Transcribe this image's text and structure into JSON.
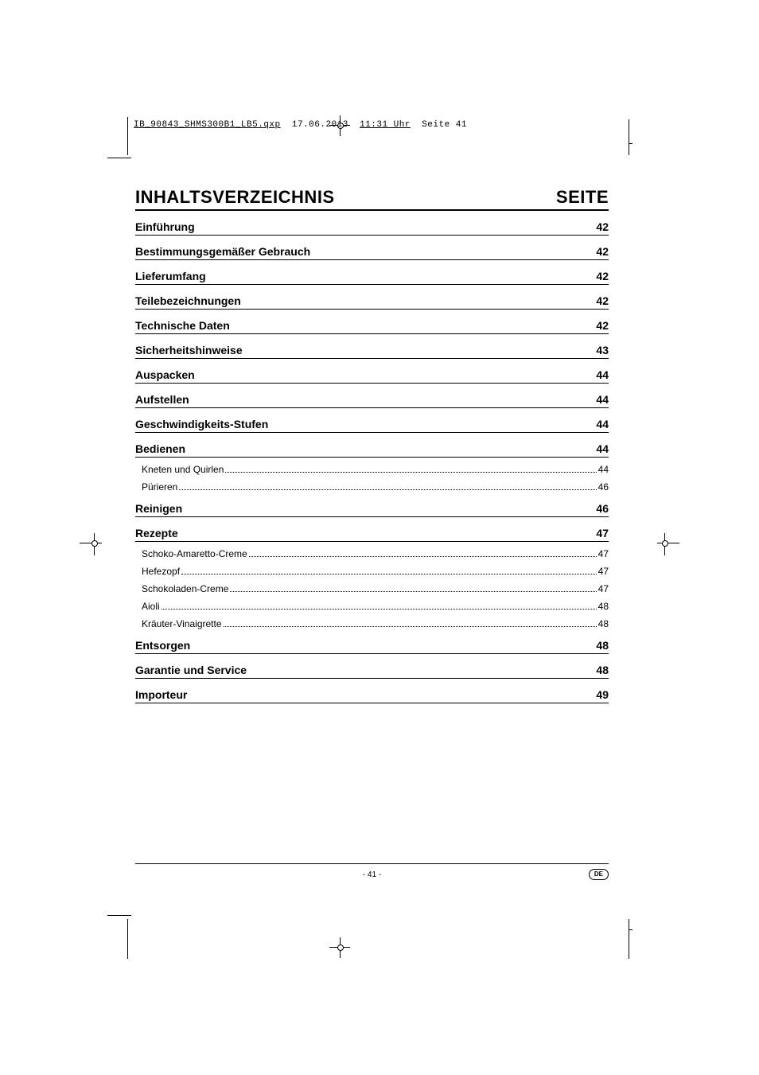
{
  "meta": {
    "filename": "IB_90843_SHMS300B1_LB5.qxp",
    "date": "17.06.2013",
    "time": "11:31 Uhr",
    "page_label": "Seite 41"
  },
  "heading": {
    "title": "INHALTSVERZEICHNIS",
    "page_col": "SEITE"
  },
  "toc": [
    {
      "type": "section",
      "label": "Einführung",
      "page": "42"
    },
    {
      "type": "section",
      "label": "Bestimmungsgemäßer Gebrauch",
      "page": "42"
    },
    {
      "type": "section",
      "label": "Lieferumfang",
      "page": "42"
    },
    {
      "type": "section",
      "label": "Teilebezeichnungen",
      "page": "42"
    },
    {
      "type": "section",
      "label": "Technische Daten",
      "page": "42"
    },
    {
      "type": "section",
      "label": "Sicherheitshinweise",
      "page": "43"
    },
    {
      "type": "section",
      "label": "Auspacken",
      "page": "44"
    },
    {
      "type": "section",
      "label": "Aufstellen",
      "page": "44"
    },
    {
      "type": "section",
      "label": "Geschwindigkeits-Stufen",
      "page": "44"
    },
    {
      "type": "section",
      "label": "Bedienen",
      "page": "44"
    },
    {
      "type": "sub",
      "label": "Kneten und Quirlen",
      "page": "44"
    },
    {
      "type": "sub",
      "label": "Pürieren",
      "page": "46"
    },
    {
      "type": "section",
      "label": "Reinigen",
      "page": "46"
    },
    {
      "type": "section",
      "label": "Rezepte",
      "page": "47"
    },
    {
      "type": "sub",
      "label": "Schoko-Amaretto-Creme",
      "page": "47"
    },
    {
      "type": "sub",
      "label": "Hefezopf",
      "page": "47"
    },
    {
      "type": "sub",
      "label": "Schokoladen-Creme",
      "page": "47"
    },
    {
      "type": "sub",
      "label": "Aioli",
      "page": "48"
    },
    {
      "type": "sub",
      "label": "Kräuter-Vinaigrette",
      "page": "48"
    },
    {
      "type": "section",
      "label": "Entsorgen",
      "page": "48"
    },
    {
      "type": "section",
      "label": "Garantie und Service",
      "page": "48"
    },
    {
      "type": "section",
      "label": "Importeur",
      "page": "49"
    }
  ],
  "footer": {
    "page_number": "- 41 -",
    "lang": "DE"
  },
  "colors": {
    "text": "#000000",
    "background": "#ffffff",
    "rule": "#000000"
  },
  "typography": {
    "heading_fontsize": 22,
    "section_fontsize": 14,
    "sub_fontsize": 12,
    "meta_fontsize": 11,
    "footer_fontsize": 10
  }
}
